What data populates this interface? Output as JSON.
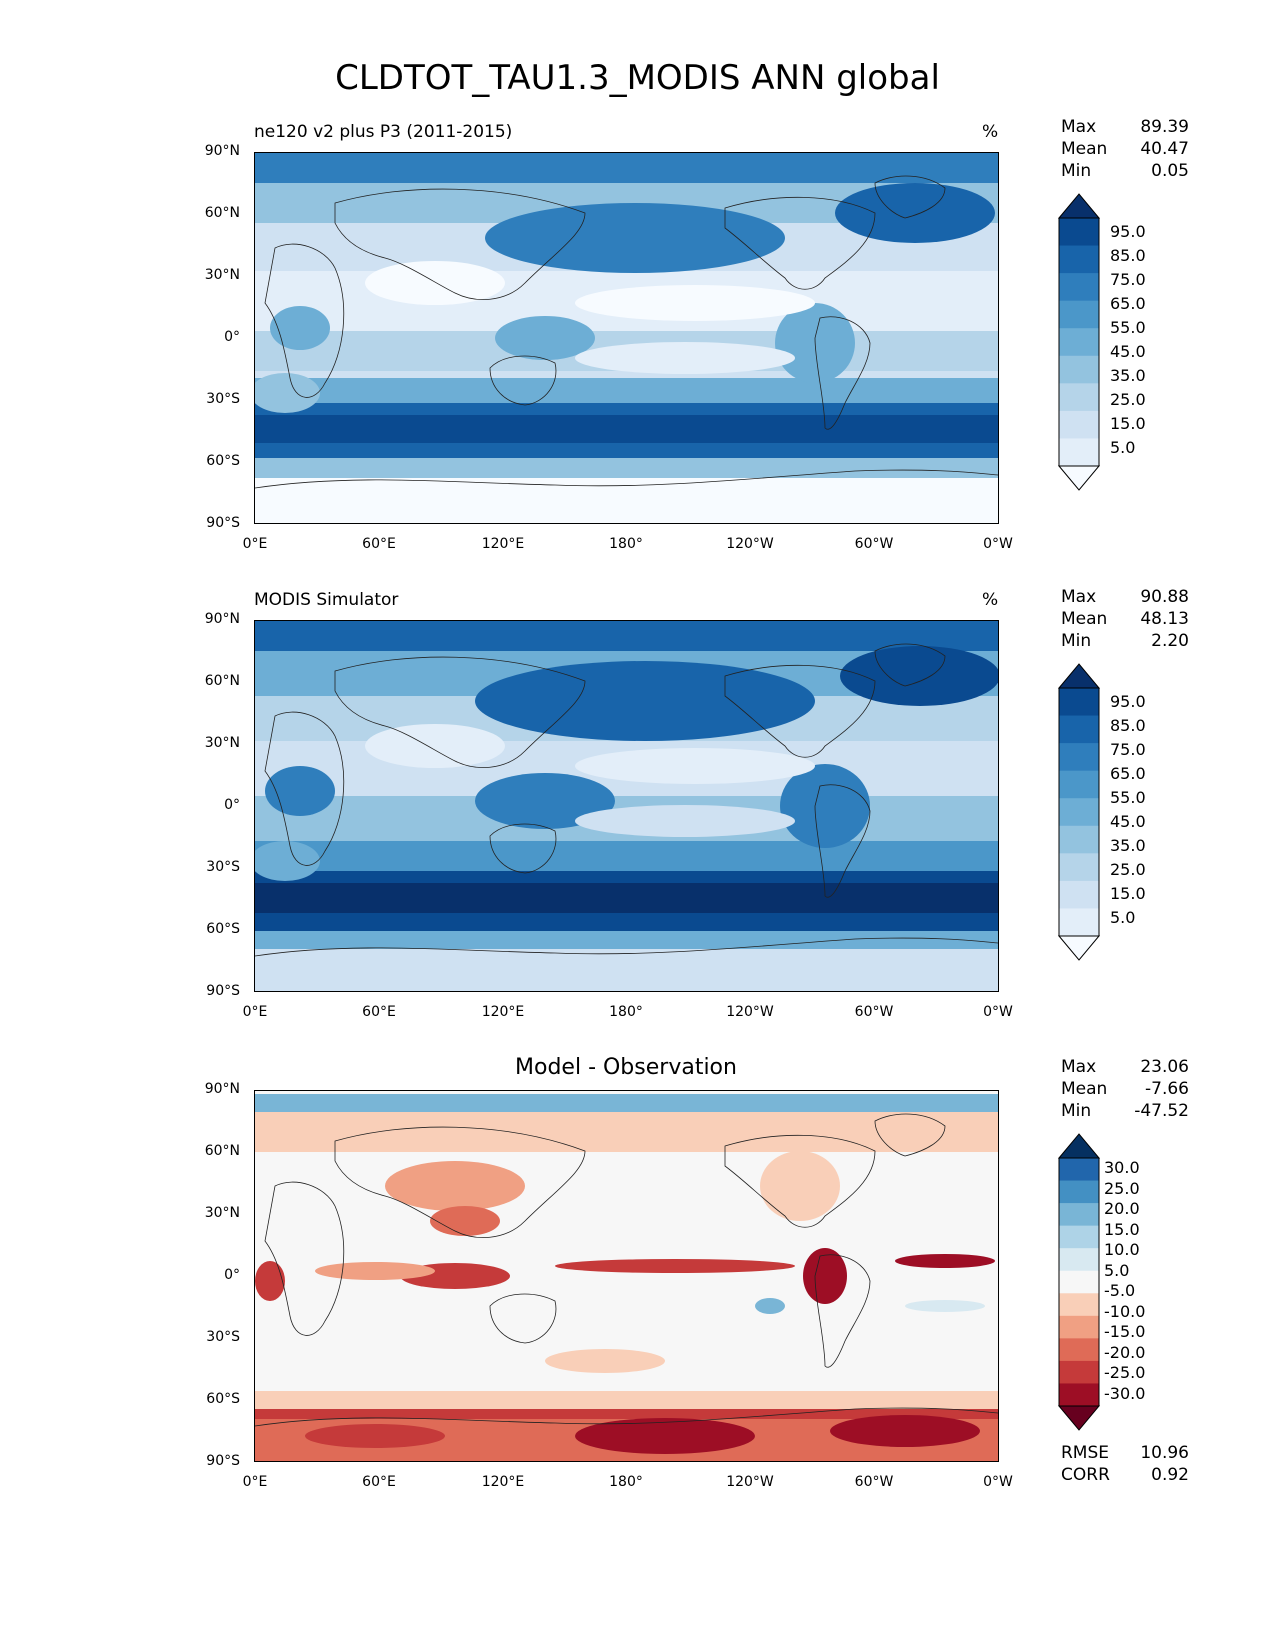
{
  "figure_title": "CLDTOT_TAU1.3_MODIS ANN global",
  "lat_ticks": [
    "90°N",
    "60°N",
    "30°N",
    "0°",
    "30°S",
    "60°S",
    "90°S"
  ],
  "lon_ticks": [
    "0°E",
    "60°E",
    "120°E",
    "180°",
    "120°W",
    "60°W",
    "0°W"
  ],
  "panels": [
    {
      "title": "ne120 v2 plus P3 (2011-2015)",
      "units": "%",
      "stats": [
        {
          "label": "Max",
          "value": "89.39"
        },
        {
          "label": "Mean",
          "value": "40.47"
        },
        {
          "label": "Min",
          "value": "0.05"
        }
      ],
      "colorbar_labels": [
        "95.0",
        "85.0",
        "75.0",
        "65.0",
        "55.0",
        "45.0",
        "35.0",
        "25.0",
        "15.0",
        "5.0"
      ],
      "colorbar_colors": [
        "#f7fbff",
        "#e3eef9",
        "#cfe1f2",
        "#b5d4e9",
        "#93c3df",
        "#6daed5",
        "#4b97c9",
        "#2f7ebc",
        "#1864aa",
        "#0a4a90",
        "#08306b"
      ]
    },
    {
      "title": "MODIS Simulator",
      "units": "%",
      "stats": [
        {
          "label": "Max",
          "value": "90.88"
        },
        {
          "label": "Mean",
          "value": "48.13"
        },
        {
          "label": "Min",
          "value": "2.20"
        }
      ],
      "colorbar_labels": [
        "95.0",
        "85.0",
        "75.0",
        "65.0",
        "55.0",
        "45.0",
        "35.0",
        "25.0",
        "15.0",
        "5.0"
      ],
      "colorbar_colors": [
        "#f7fbff",
        "#e3eef9",
        "#cfe1f2",
        "#b5d4e9",
        "#93c3df",
        "#6daed5",
        "#4b97c9",
        "#2f7ebc",
        "#1864aa",
        "#0a4a90",
        "#08306b"
      ]
    },
    {
      "title": "Model - Observation",
      "units": "",
      "stats": [
        {
          "label": "Max",
          "value": "23.06"
        },
        {
          "label": "Mean",
          "value": "-7.66"
        },
        {
          "label": "Min",
          "value": "-47.52"
        }
      ],
      "colorbar_labels": [
        "30.0",
        "25.0",
        "20.0",
        "15.0",
        "10.0",
        "5.0",
        "-5.0",
        "-10.0",
        "-15.0",
        "-20.0",
        "-25.0",
        "-30.0"
      ],
      "colorbar_colors": [
        "#67001f",
        "#9d0e25",
        "#c53a3a",
        "#df6b57",
        "#f0a083",
        "#f9cfb8",
        "#f7f7f7",
        "#d8e9f1",
        "#aed3e7",
        "#79b5d6",
        "#4390c3",
        "#2166ac",
        "#053061"
      ],
      "extra_stats": [
        {
          "label": "RMSE",
          "value": "10.96"
        },
        {
          "label": "CORR",
          "value": "0.92"
        }
      ]
    }
  ]
}
